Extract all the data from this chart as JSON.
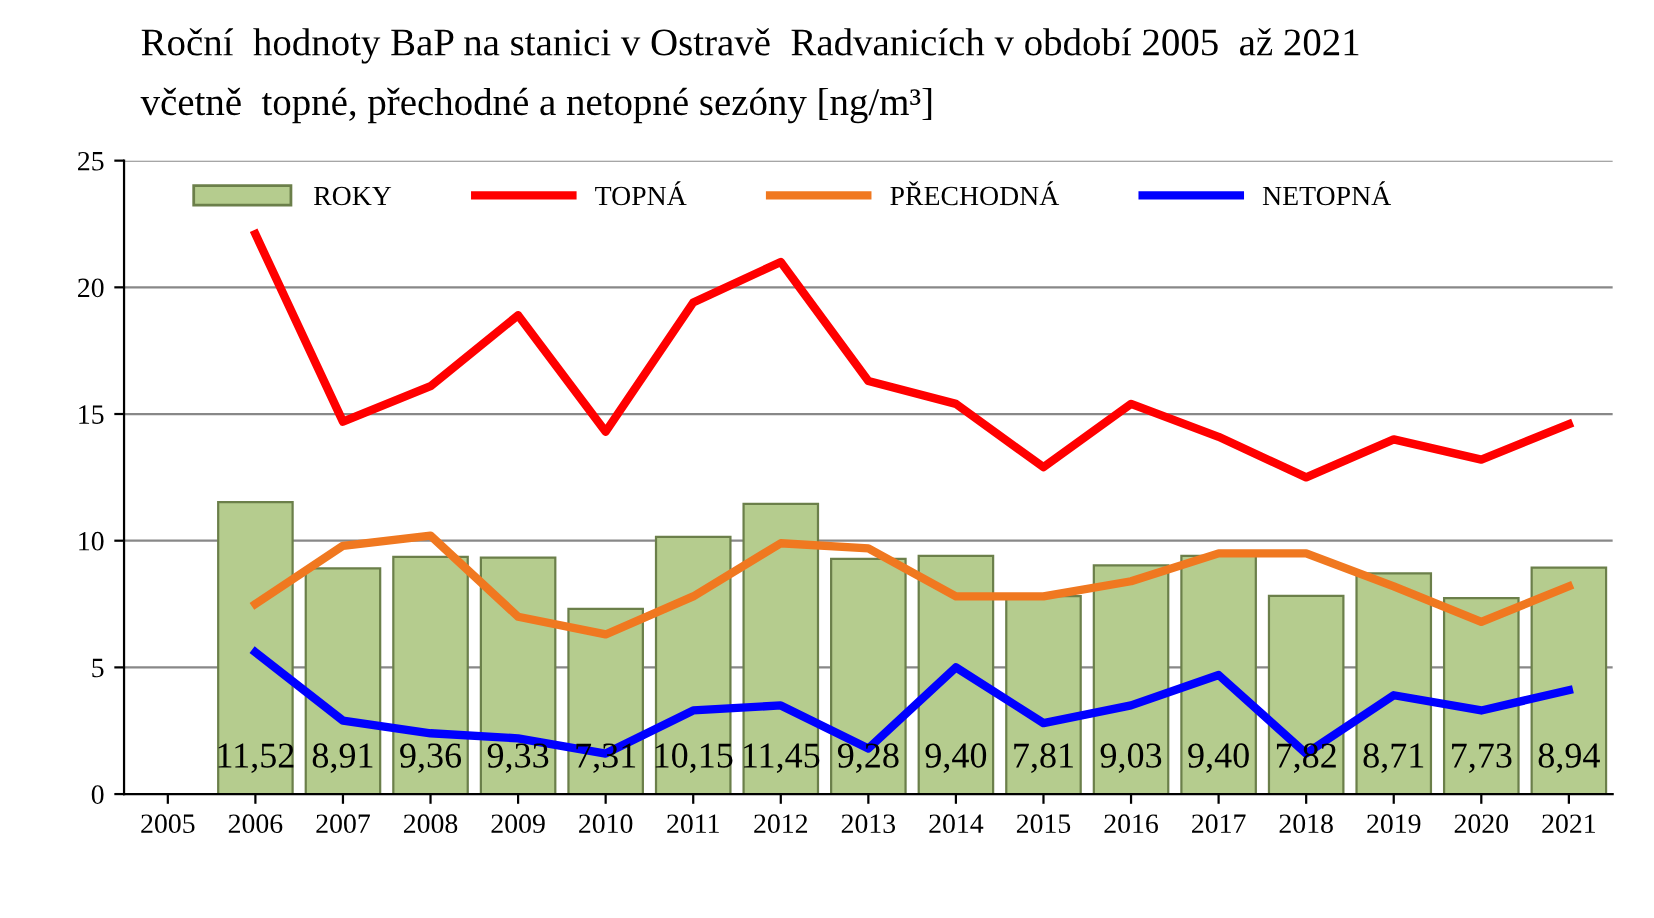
{
  "chart_data": {
    "type": "bar",
    "title": "Roční  hodnoty BaP na stanici v Ostravě  Radvanicích v období 2005  až 2021",
    "subtitle": "včetně  topné, přechodné a netopné sezóny [ng/m³]",
    "categories": [
      "2005",
      "2006",
      "2007",
      "2008",
      "2009",
      "2010",
      "2011",
      "2012",
      "2013",
      "2014",
      "2015",
      "2016",
      "2017",
      "2018",
      "2019",
      "2020",
      "2021"
    ],
    "series": [
      {
        "name": "ROKY",
        "color": "#b5cc8e",
        "values": [
          null,
          11.52,
          8.91,
          9.36,
          9.33,
          7.31,
          10.15,
          11.45,
          9.28,
          9.4,
          7.81,
          9.03,
          9.4,
          7.82,
          8.71,
          7.73,
          8.94
        ],
        "value_labels": [
          null,
          "11,52",
          "8,91",
          "9,36",
          "9,33",
          "7,31",
          "10,15",
          "11,45",
          "9,28",
          "9,40",
          "7,81",
          "9,03",
          "9,40",
          "7,82",
          "8,71",
          "7,73",
          "8,94"
        ]
      },
      {
        "name": "TOPNÁ",
        "type": "line",
        "color": "#ff0000",
        "values": [
          null,
          22.1,
          14.7,
          16.1,
          18.9,
          14.3,
          19.4,
          21.0,
          16.3,
          15.4,
          12.9,
          15.4,
          14.1,
          12.5,
          14.0,
          13.2,
          14.6
        ]
      },
      {
        "name": "PŘECHODNÁ",
        "type": "line",
        "color": "#f07820",
        "values": [
          null,
          7.5,
          9.8,
          10.2,
          7.0,
          6.3,
          7.8,
          9.9,
          9.7,
          7.8,
          7.8,
          8.4,
          9.5,
          9.5,
          8.2,
          6.8,
          8.2
        ]
      },
      {
        "name": "NETOPNÁ",
        "type": "line",
        "color": "#0000ff",
        "values": [
          null,
          5.6,
          2.9,
          2.4,
          2.2,
          1.6,
          3.3,
          3.5,
          1.8,
          5.0,
          2.8,
          3.5,
          4.7,
          1.6,
          3.9,
          3.3,
          4.1
        ]
      }
    ],
    "ylim": [
      0,
      25
    ],
    "yticks": [
      0,
      5,
      10,
      15,
      20,
      25
    ],
    "grid": "y",
    "legend": "top left",
    "marker": "none",
    "line_style": "solid"
  }
}
